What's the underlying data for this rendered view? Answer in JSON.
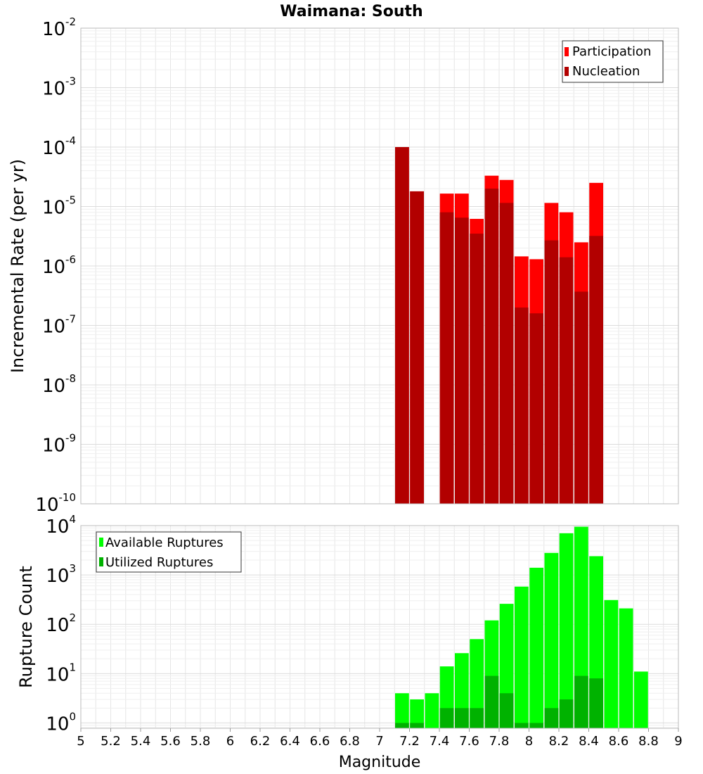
{
  "title": "Waimana: South",
  "colors": {
    "participation": "#ff0000",
    "nucleation": "#b20000",
    "available": "#00ff00",
    "utilized": "#00b200",
    "grid": "#e6e6e6",
    "frame": "#bbbbbb"
  },
  "chart_data": [
    {
      "type": "bar",
      "panel": "top",
      "title": "Waimana: South",
      "xlabel": "",
      "ylabel": "Incremental Rate (per yr)",
      "yscale": "log",
      "ylim": [
        1e-10,
        0.01
      ],
      "xlim": [
        5,
        9
      ],
      "legend": "top-right",
      "y_ticks": [
        {
          "base": "10",
          "exp": "-10",
          "value": 1e-10
        },
        {
          "base": "10",
          "exp": "-9",
          "value": 1e-09
        },
        {
          "base": "10",
          "exp": "-8",
          "value": 1e-08
        },
        {
          "base": "10",
          "exp": "-7",
          "value": 1e-07
        },
        {
          "base": "10",
          "exp": "-6",
          "value": 1e-06
        },
        {
          "base": "10",
          "exp": "-5",
          "value": 1e-05
        },
        {
          "base": "10",
          "exp": "-4",
          "value": 0.0001
        },
        {
          "base": "10",
          "exp": "-3",
          "value": 0.001
        },
        {
          "base": "10",
          "exp": "-2",
          "value": 0.01
        }
      ],
      "x": [
        7.15,
        7.25,
        7.45,
        7.55,
        7.65,
        7.75,
        7.85,
        7.95,
        8.05,
        8.15,
        8.25,
        8.35,
        8.45
      ],
      "series": [
        {
          "name": "Participation",
          "color_key": "participation",
          "values": [
            0.0001,
            1.8e-05,
            1.65e-05,
            1.65e-05,
            6.2e-06,
            3.3e-05,
            2.8e-05,
            1.45e-06,
            1.3e-06,
            1.15e-05,
            8e-06,
            2.5e-06,
            2.5e-05
          ]
        },
        {
          "name": "Nucleation",
          "color_key": "nucleation",
          "values": [
            0.0001,
            1.8e-05,
            8e-06,
            6.5e-06,
            3.5e-06,
            2e-05,
            1.15e-05,
            2e-07,
            1.6e-07,
            2.7e-06,
            1.4e-06,
            3.7e-07,
            3.2e-06
          ]
        }
      ]
    },
    {
      "type": "bar",
      "panel": "bottom",
      "xlabel": "Magnitude",
      "ylabel": "Rupture Count",
      "yscale": "log",
      "ylim": [
        0.78,
        10000
      ],
      "xlim": [
        5,
        9
      ],
      "legend": "top-left",
      "x_ticks": [
        "5",
        "5.2",
        "5.4",
        "5.6",
        "5.8",
        "6",
        "6.2",
        "6.4",
        "6.6",
        "6.8",
        "7",
        "7.2",
        "7.4",
        "7.6",
        "7.8",
        "8",
        "8.2",
        "8.4",
        "8.6",
        "8.8",
        "9"
      ],
      "y_ticks": [
        {
          "base": "10",
          "exp": "0",
          "value": 1
        },
        {
          "base": "10",
          "exp": "1",
          "value": 10
        },
        {
          "base": "10",
          "exp": "2",
          "value": 100
        },
        {
          "base": "10",
          "exp": "3",
          "value": 1000
        },
        {
          "base": "10",
          "exp": "4",
          "value": 10000
        }
      ],
      "x": [
        7.15,
        7.25,
        7.35,
        7.45,
        7.55,
        7.65,
        7.75,
        7.85,
        7.95,
        8.05,
        8.15,
        8.25,
        8.35,
        8.45,
        8.55,
        8.65,
        8.75
      ],
      "series": [
        {
          "name": "Available Ruptures",
          "color_key": "available",
          "values": [
            4,
            3,
            4,
            14,
            26,
            50,
            120,
            260,
            580,
            1400,
            2800,
            7000,
            9500,
            2400,
            310,
            210,
            11
          ]
        },
        {
          "name": "Utilized Ruptures",
          "color_key": "utilized",
          "values": [
            1,
            1,
            0,
            2,
            2,
            2,
            9,
            4,
            1,
            1,
            2,
            3,
            9,
            8,
            0,
            0,
            0
          ]
        }
      ]
    }
  ]
}
